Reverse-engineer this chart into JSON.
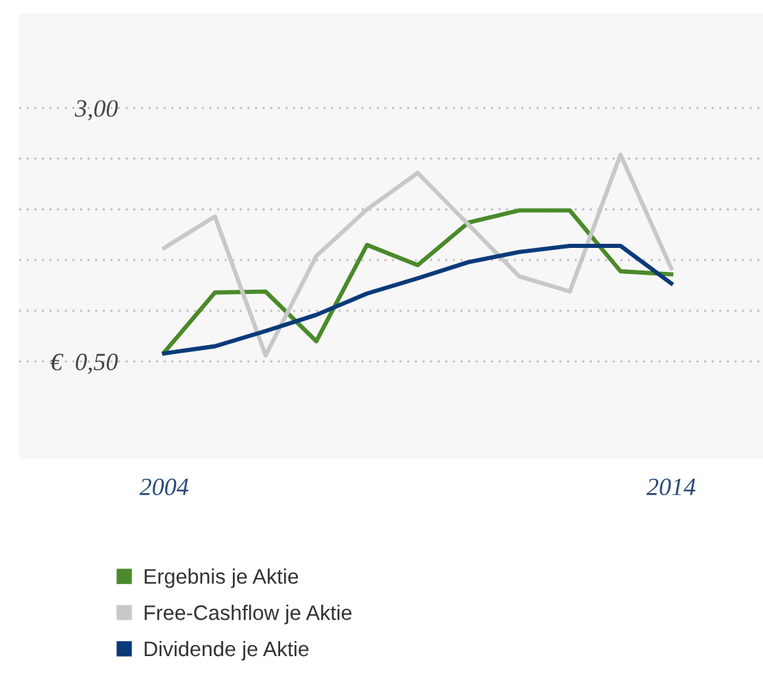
{
  "chart_data": {
    "type": "line",
    "x": [
      2004,
      2005,
      2006,
      2007,
      2008,
      2009,
      2010,
      2011,
      2012,
      2013,
      2014
    ],
    "series": [
      {
        "name": "Ergebnis je Aktie",
        "color": "#4a8a2a",
        "values": [
          0.59,
          1.18,
          1.19,
          0.7,
          1.65,
          1.45,
          1.87,
          1.99,
          1.99,
          1.39,
          1.36
        ]
      },
      {
        "name": "Free-Cashflow je Aktie",
        "color": "#c8c8c8",
        "values": [
          1.62,
          1.93,
          0.56,
          1.54,
          2.0,
          2.36,
          1.85,
          1.34,
          1.19,
          2.54,
          1.42
        ]
      },
      {
        "name": "Dividende je Aktie",
        "color": "#0a3a7a",
        "values": [
          0.58,
          0.65,
          0.8,
          0.96,
          1.17,
          1.32,
          1.48,
          1.58,
          1.64,
          1.64,
          1.27
        ]
      }
    ],
    "xlim": [
      2001.14,
      2015.81
    ],
    "xticks": [
      {
        "value": 2004,
        "label": "2004"
      },
      {
        "value": 2014,
        "label": "2014"
      }
    ],
    "ylim": [
      -0.46,
      3.93
    ],
    "yticks": [
      {
        "value": 0.5,
        "label": "€  0,50"
      },
      {
        "value": 1.0,
        "label": null
      },
      {
        "value": 1.5,
        "label": null
      },
      {
        "value": 2.0,
        "label": null
      },
      {
        "value": 2.5,
        "label": null
      },
      {
        "value": 3.0,
        "label": "3,00"
      }
    ],
    "grid": "y",
    "legend": "bottom",
    "marker": "none",
    "line_style": "solid"
  }
}
